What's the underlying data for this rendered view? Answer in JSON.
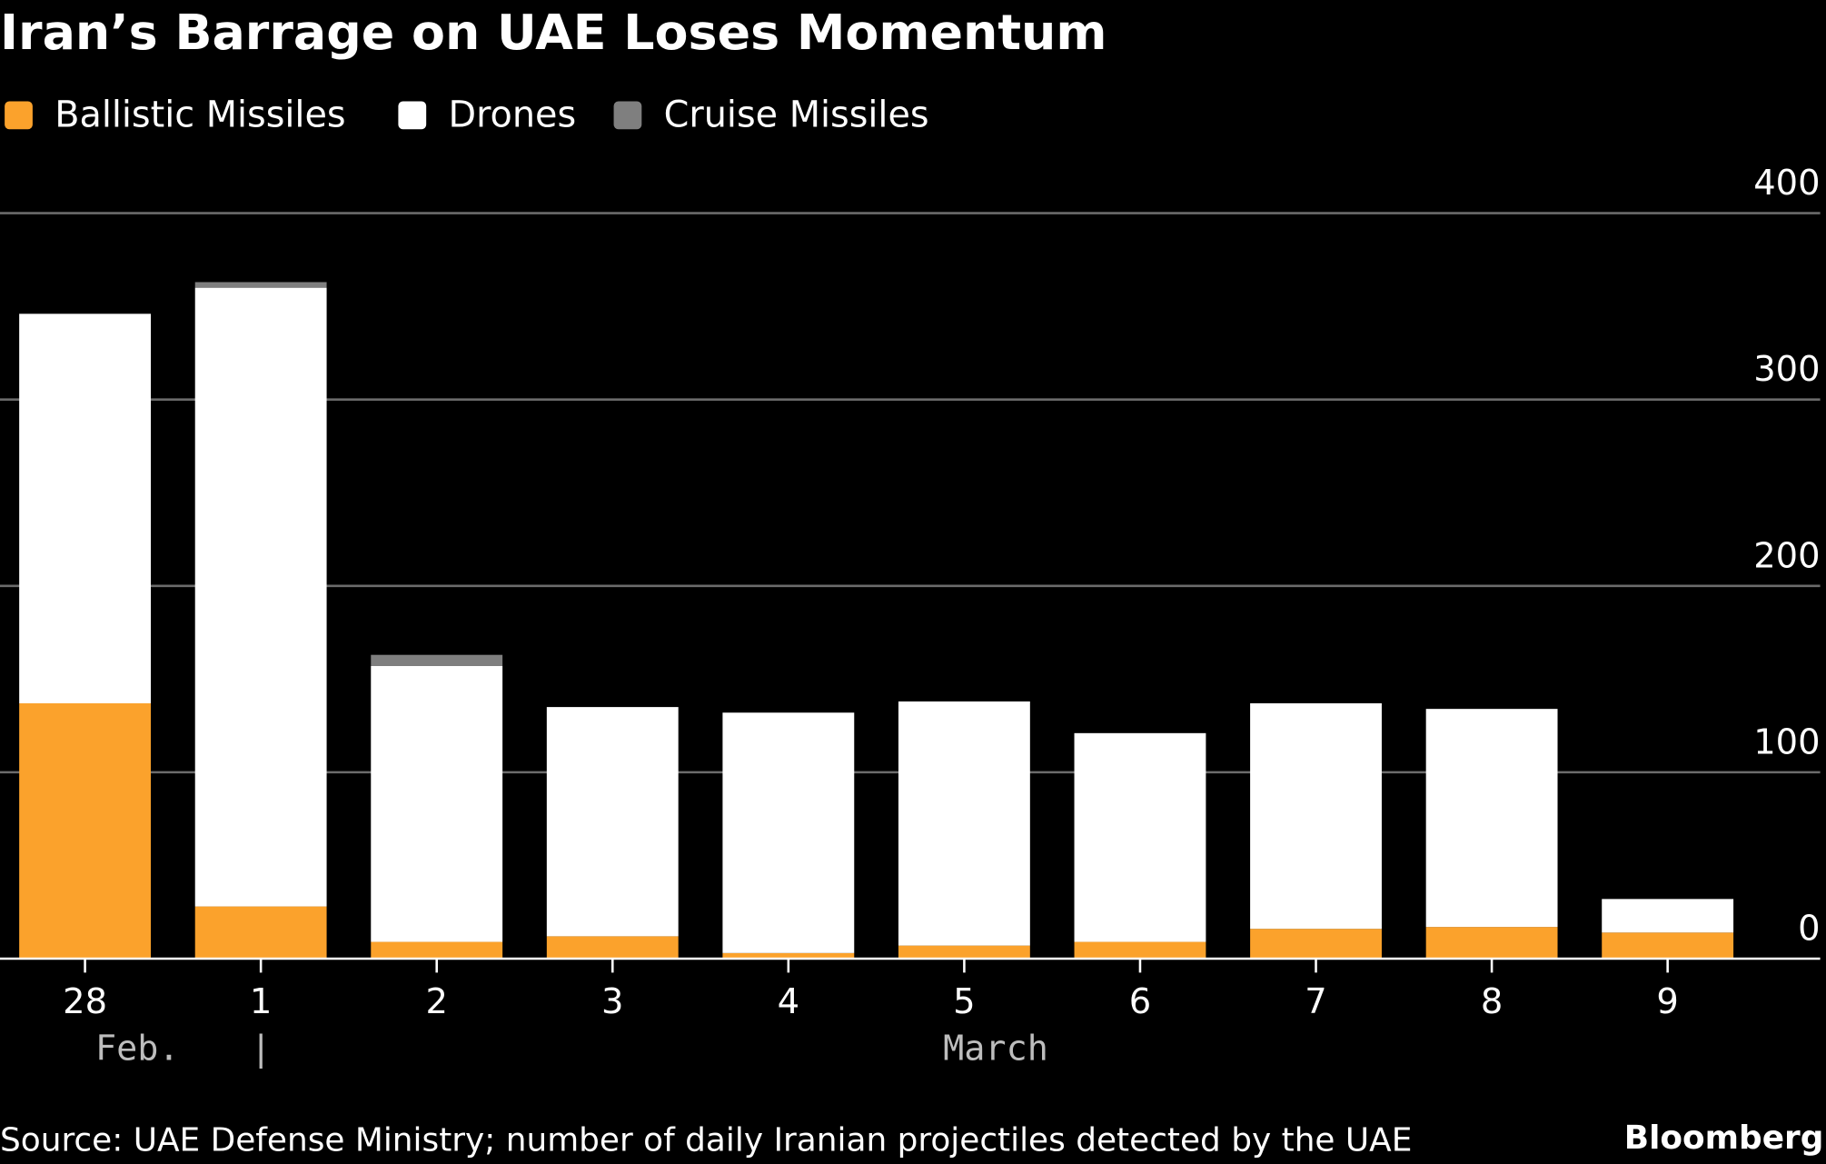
{
  "chart_data": {
    "type": "bar",
    "stacked": true,
    "title": "Iran’s Barrage on UAE Loses Momentum",
    "categories": [
      "28",
      "1",
      "2",
      "3",
      "4",
      "5",
      "6",
      "7",
      "8",
      "9"
    ],
    "group_labels": [
      {
        "label": "Feb.",
        "separator": "|"
      },
      {
        "label": "March"
      }
    ],
    "series": [
      {
        "name": "Ballistic Missiles",
        "color": "#FBA22C",
        "values": [
          137,
          28,
          9,
          12,
          3,
          7,
          9,
          16,
          17,
          14
        ]
      },
      {
        "name": "Drones",
        "color": "#FFFFFF",
        "values": [
          209,
          332,
          148,
          123,
          129,
          131,
          112,
          121,
          117,
          18
        ]
      },
      {
        "name": "Cruise Missiles",
        "color": "#7F7F7F",
        "values": [
          0,
          3,
          6,
          0,
          0,
          0,
          0,
          0,
          0,
          0
        ]
      }
    ],
    "ylim": [
      0,
      400
    ],
    "yticks": [
      "0",
      "100",
      "200",
      "300",
      "400"
    ],
    "y_axis_side": "right",
    "grid": true,
    "legend_position": "top-left",
    "source": "Source: UAE Defense Ministry; number of daily Iranian projectiles detected by the UAE",
    "brand": "Bloomberg"
  }
}
